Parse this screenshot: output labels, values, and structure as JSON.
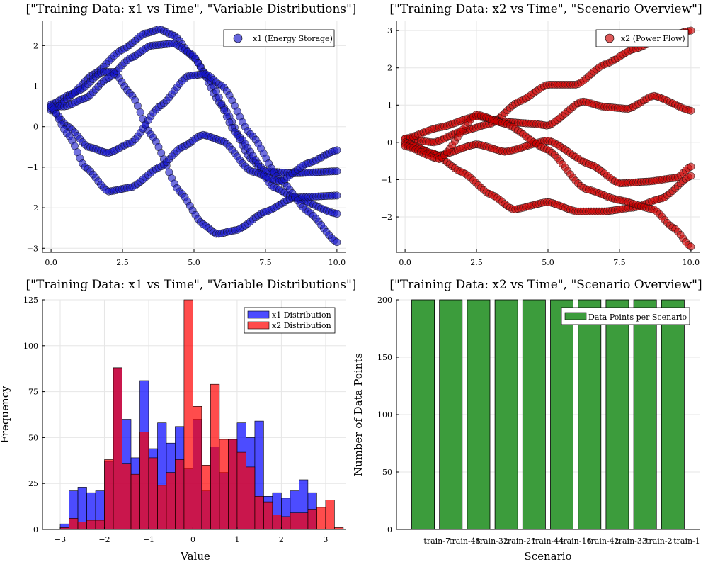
{
  "chart_data": [
    {
      "type": "scatter",
      "title": "[\"Training Data: x1 vs Time\", \"Variable Distributions\"]",
      "xlabel": "",
      "ylabel": "",
      "xlim": [
        -0.3,
        10.3
      ],
      "ylim": [
        -3.1,
        2.6
      ],
      "xticks": [
        0,
        2.5,
        5,
        7.5,
        10
      ],
      "xtick_labels": [
        "0.0",
        "2.5",
        "5.0",
        "7.5",
        "10.0"
      ],
      "yticks": [
        -3,
        -2,
        -1,
        0,
        1,
        2
      ],
      "ytick_labels": [
        "−3",
        "−2",
        "−1",
        "0",
        "1",
        "2"
      ],
      "grid": true,
      "legend_position": "top-right",
      "series": [
        {
          "name": "x1 (Energy Storage)",
          "color": "#1414c8",
          "trajectories": [
            {
              "x": [
                0,
                0.7,
                1.5,
                2.5,
                3.3,
                3.8,
                4.3,
                5.0,
                6.0,
                7.0,
                7.8,
                8.5,
                10.0
              ],
              "y": [
                0.55,
                0.8,
                1.3,
                1.9,
                2.3,
                2.4,
                2.25,
                1.7,
                0.5,
                -0.8,
                -1.5,
                -1.75,
                -2.15
              ]
            },
            {
              "x": [
                0,
                1.0,
                1.8,
                2.2,
                2.8,
                3.5,
                4.5,
                5.3,
                5.8,
                6.5,
                7.5,
                8.5,
                10.0
              ],
              "y": [
                0.4,
                0.9,
                1.35,
                1.35,
                0.8,
                -0.2,
                -1.6,
                -2.4,
                -2.65,
                -2.55,
                -2.1,
                -1.75,
                -1.7
              ]
            },
            {
              "x": [
                0,
                0.5,
                1.2,
                2.0,
                2.8,
                3.5,
                4.3,
                4.9,
                5.5,
                6.5,
                7.5,
                8.5,
                10.0
              ],
              "y": [
                0.5,
                0.5,
                0.7,
                1.2,
                1.7,
                2.0,
                2.05,
                1.8,
                1.2,
                -0.2,
                -1.1,
                -1.15,
                -1.1
              ]
            },
            {
              "x": [
                0,
                0.6,
                1.3,
                2.0,
                2.8,
                3.8,
                4.8,
                5.4,
                6.0,
                7.0,
                8.0,
                9.0,
                10.0
              ],
              "y": [
                0.45,
                0.0,
                -0.5,
                -0.65,
                -0.4,
                0.5,
                1.25,
                1.3,
                1.0,
                -0.2,
                -1.3,
                -2.1,
                -2.85
              ]
            },
            {
              "x": [
                0,
                0.6,
                1.2,
                2.0,
                2.8,
                3.8,
                4.6,
                5.3,
                6.0,
                7.0,
                8.0,
                9.0,
                10.0
              ],
              "y": [
                0.5,
                -0.2,
                -1.0,
                -1.6,
                -1.5,
                -1.0,
                -0.5,
                -0.2,
                -0.35,
                -1.1,
                -1.35,
                -0.9,
                -0.58
              ]
            }
          ]
        }
      ]
    },
    {
      "type": "scatter",
      "title": "[\"Training Data: x2 vs Time\", \"Scenario Overview\"]",
      "xlabel": "",
      "ylabel": "",
      "xlim": [
        -0.3,
        10.3
      ],
      "ylim": [
        -2.95,
        3.25
      ],
      "xticks": [
        0,
        2.5,
        5,
        7.5,
        10
      ],
      "xtick_labels": [
        "0.0",
        "2.5",
        "5.0",
        "7.5",
        "10.0"
      ],
      "yticks": [
        -2,
        -1,
        0,
        1,
        2,
        3
      ],
      "ytick_labels": [
        "−2",
        "−1",
        "0",
        "1",
        "2",
        "3"
      ],
      "grid": true,
      "legend_position": "top-right",
      "series": [
        {
          "name": "x2 (Power Flow)",
          "color": "#cc0000",
          "trajectories": [
            {
              "x": [
                0,
                1.0,
                2.0,
                3.0,
                4.0,
                5.0,
                6.0,
                7.0,
                8.0,
                9.0,
                10.0
              ],
              "y": [
                0.1,
                0.0,
                0.3,
                0.5,
                1.1,
                1.55,
                1.55,
                2.1,
                2.5,
                2.8,
                3.0
              ]
            },
            {
              "x": [
                0,
                1.2,
                2.5,
                3.5,
                4.5,
                5.0,
                6.2,
                7.0,
                7.8,
                8.7,
                10.0
              ],
              "y": [
                0.1,
                0.4,
                0.7,
                0.55,
                0.5,
                0.45,
                1.1,
                0.95,
                0.9,
                1.25,
                0.85
              ]
            },
            {
              "x": [
                0,
                1.2,
                2.5,
                3.5,
                5.0,
                6.5,
                7.5,
                8.5,
                9.5,
                10.0
              ],
              "y": [
                -0.05,
                -0.35,
                -0.05,
                -0.25,
                0.05,
                -0.6,
                -1.1,
                -1.05,
                -0.95,
                -0.65
              ]
            },
            {
              "x": [
                0,
                1.0,
                2.0,
                3.0,
                3.8,
                5.0,
                6.0,
                7.0,
                8.0,
                9.0,
                10.0
              ],
              "y": [
                0.0,
                -0.3,
                -0.8,
                -1.4,
                -1.8,
                -1.6,
                -1.85,
                -1.85,
                -1.75,
                -1.5,
                -0.9
              ]
            },
            {
              "x": [
                0,
                1.2,
                2.5,
                3.5,
                5.0,
                6.3,
                7.5,
                8.7,
                9.4,
                10.0
              ],
              "y": [
                -0.1,
                -0.45,
                0.75,
                0.5,
                -0.2,
                -1.25,
                -1.55,
                -1.8,
                -2.3,
                -2.8
              ]
            }
          ]
        }
      ]
    },
    {
      "type": "histogram",
      "title": "[\"Training Data: x1 vs Time\", \"Variable Distributions\"]",
      "xlabel": "Value",
      "ylabel": "Frequency",
      "xlim": [
        -3.4,
        3.45
      ],
      "ylim": [
        0,
        125
      ],
      "xticks": [
        -3,
        -2,
        -1,
        0,
        1,
        2,
        3
      ],
      "xtick_labels": [
        "−3",
        "−2",
        "−1",
        "0",
        "1",
        "2",
        "3"
      ],
      "yticks": [
        0,
        25,
        50,
        75,
        100,
        125
      ],
      "ytick_labels": [
        "0",
        "25",
        "50",
        "75",
        "100",
        "125"
      ],
      "grid": true,
      "legend_position": "top-right",
      "bin_start": -3.0,
      "bin_width": 0.2,
      "series": [
        {
          "name": "x1 Distribution",
          "color": "#0000ff",
          "values": [
            3,
            21,
            23,
            20,
            21,
            37,
            88,
            60,
            39,
            81,
            44,
            58,
            47,
            56,
            33,
            60,
            21,
            45,
            31,
            49,
            58,
            50,
            59,
            18,
            20,
            17,
            21,
            27,
            20,
            0,
            0
          ]
        },
        {
          "name": "x2 Distribution",
          "color": "#ff0000",
          "values": [
            1,
            6,
            4,
            5,
            5,
            38,
            88,
            36,
            30,
            53,
            39,
            24,
            31,
            38,
            125,
            67,
            35,
            79,
            49,
            49,
            42,
            34,
            18,
            15,
            8,
            7,
            9,
            9,
            11,
            12,
            16,
            1
          ]
        }
      ]
    },
    {
      "type": "bar",
      "title": "[\"Training Data: x2 vs Time\", \"Scenario Overview\"]",
      "xlabel": "Scenario",
      "ylabel": "Number of Data Points",
      "ylim": [
        0,
        200
      ],
      "yticks": [
        0,
        50,
        100,
        150,
        200
      ],
      "ytick_labels": [
        "0",
        "50",
        "100",
        "150",
        "200"
      ],
      "grid": true,
      "legend_position": "top-right",
      "categories": [
        "train-7",
        "train-48",
        "train-32",
        "train-29",
        "train-44",
        "train-16",
        "train-42",
        "train-33",
        "train-2",
        "train-1"
      ],
      "series": [
        {
          "name": "Data Points per Scenario",
          "color": "#3c9c3c",
          "values": [
            200,
            200,
            200,
            200,
            200,
            200,
            200,
            200,
            200,
            200
          ]
        }
      ]
    }
  ]
}
